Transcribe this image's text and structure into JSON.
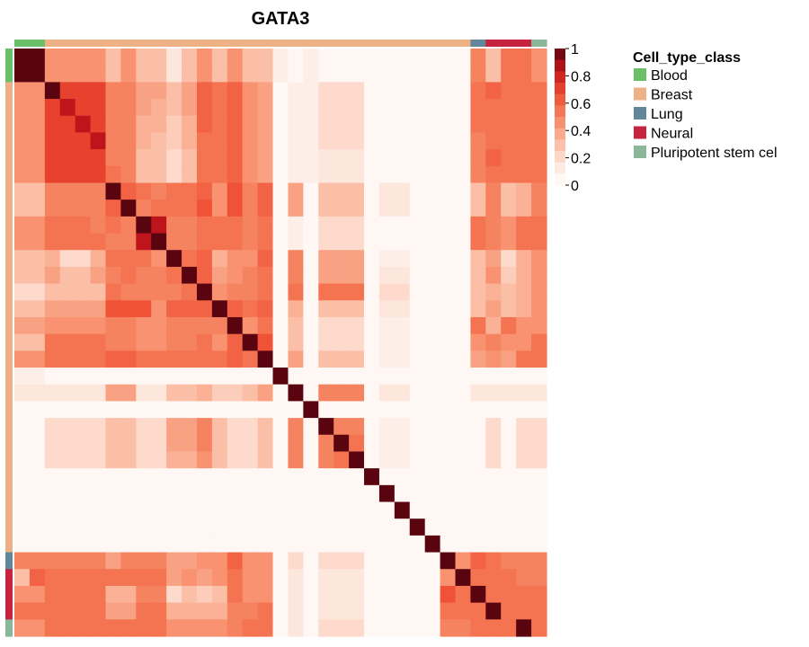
{
  "chart_data": {
    "type": "heatmap",
    "title": "GATA3",
    "colorbar": {
      "ticks": [
        "0",
        "0.2",
        "0.4",
        "0.6",
        "0.8",
        "1"
      ],
      "range": [
        0,
        1
      ],
      "colors": [
        "#ffffff",
        "#fde3d8",
        "#fbb69b",
        "#f6835f",
        "#ee4d32",
        "#c8171c",
        "#5a0410"
      ]
    },
    "legend": {
      "title": "Cell_type_class",
      "position": "right",
      "items": [
        {
          "label": "Blood",
          "color": "#6abf69"
        },
        {
          "label": "Breast",
          "color": "#eeb186"
        },
        {
          "label": "Lung",
          "color": "#60879a"
        },
        {
          "label": "Neural",
          "color": "#c6243e"
        },
        {
          "label": "Pluripotent stem cel",
          "color": "#88b897"
        }
      ]
    },
    "row_annotation": [
      "Blood",
      "Blood",
      "Breast",
      "Breast",
      "Breast",
      "Breast",
      "Breast",
      "Breast",
      "Breast",
      "Breast",
      "Breast",
      "Breast",
      "Breast",
      "Breast",
      "Breast",
      "Breast",
      "Breast",
      "Breast",
      "Breast",
      "Breast",
      "Breast",
      "Breast",
      "Breast",
      "Breast",
      "Breast",
      "Breast",
      "Breast",
      "Breast",
      "Breast",
      "Breast",
      "Lung",
      "Neural",
      "Neural",
      "Neural",
      "Pluripotent stem cel"
    ],
    "col_annotation": [
      "Blood",
      "Blood",
      "Breast",
      "Breast",
      "Breast",
      "Breast",
      "Breast",
      "Breast",
      "Breast",
      "Breast",
      "Breast",
      "Breast",
      "Breast",
      "Breast",
      "Breast",
      "Breast",
      "Breast",
      "Breast",
      "Breast",
      "Breast",
      "Breast",
      "Breast",
      "Breast",
      "Breast",
      "Breast",
      "Breast",
      "Breast",
      "Breast",
      "Breast",
      "Breast",
      "Lung",
      "Neural",
      "Neural",
      "Neural",
      "Pluripotent stem cel"
    ],
    "matrix": [
      [
        1,
        1,
        0.45,
        0.45,
        0.45,
        0.45,
        0.3,
        0.45,
        0.3,
        0.3,
        0.15,
        0.3,
        0.45,
        0.3,
        0.45,
        0.3,
        0.3,
        0.1,
        0.05,
        0.1,
        0.05,
        0.05,
        0.05,
        0.05,
        0.05,
        0.05,
        0.05,
        0.05,
        0.05,
        0.05,
        0.5,
        0.3,
        0.55,
        0.55,
        0.45
      ],
      [
        1,
        1,
        0.45,
        0.45,
        0.45,
        0.45,
        0.3,
        0.45,
        0.3,
        0.3,
        0.15,
        0.3,
        0.45,
        0.3,
        0.45,
        0.3,
        0.3,
        0.1,
        0.05,
        0.1,
        0.05,
        0.05,
        0.05,
        0.05,
        0.05,
        0.05,
        0.05,
        0.05,
        0.05,
        0.05,
        0.5,
        0.3,
        0.55,
        0.55,
        0.45
      ],
      [
        0.45,
        0.45,
        1,
        0.7,
        0.7,
        0.7,
        0.5,
        0.5,
        0.4,
        0.4,
        0.3,
        0.4,
        0.6,
        0.55,
        0.6,
        0.45,
        0.4,
        0.05,
        0.1,
        0.1,
        0.2,
        0.2,
        0.2,
        0.05,
        0.05,
        0.05,
        0.05,
        0.05,
        0.05,
        0.05,
        0.55,
        0.6,
        0.55,
        0.55,
        0.55
      ],
      [
        0.45,
        0.45,
        0.7,
        0.85,
        0.7,
        0.7,
        0.5,
        0.5,
        0.4,
        0.35,
        0.3,
        0.4,
        0.6,
        0.55,
        0.6,
        0.45,
        0.4,
        0.05,
        0.1,
        0.1,
        0.2,
        0.2,
        0.2,
        0.05,
        0.05,
        0.05,
        0.05,
        0.05,
        0.05,
        0.05,
        0.55,
        0.55,
        0.55,
        0.55,
        0.55
      ],
      [
        0.45,
        0.45,
        0.7,
        0.7,
        0.85,
        0.7,
        0.5,
        0.5,
        0.35,
        0.35,
        0.25,
        0.35,
        0.6,
        0.55,
        0.6,
        0.45,
        0.4,
        0.05,
        0.1,
        0.1,
        0.2,
        0.2,
        0.2,
        0.05,
        0.05,
        0.05,
        0.05,
        0.05,
        0.05,
        0.05,
        0.55,
        0.55,
        0.55,
        0.55,
        0.55
      ],
      [
        0.45,
        0.45,
        0.7,
        0.7,
        0.7,
        0.85,
        0.5,
        0.5,
        0.35,
        0.3,
        0.25,
        0.35,
        0.55,
        0.55,
        0.6,
        0.45,
        0.4,
        0.05,
        0.1,
        0.1,
        0.2,
        0.2,
        0.2,
        0.05,
        0.05,
        0.05,
        0.05,
        0.05,
        0.05,
        0.05,
        0.5,
        0.55,
        0.55,
        0.55,
        0.55
      ],
      [
        0.45,
        0.45,
        0.7,
        0.7,
        0.7,
        0.7,
        0.5,
        0.5,
        0.3,
        0.3,
        0.2,
        0.3,
        0.55,
        0.55,
        0.6,
        0.45,
        0.4,
        0.05,
        0.1,
        0.1,
        0.15,
        0.15,
        0.15,
        0.05,
        0.05,
        0.05,
        0.05,
        0.05,
        0.05,
        0.05,
        0.5,
        0.6,
        0.55,
        0.55,
        0.55
      ],
      [
        0.45,
        0.45,
        0.7,
        0.7,
        0.7,
        0.7,
        0.55,
        0.5,
        0.3,
        0.3,
        0.2,
        0.3,
        0.55,
        0.55,
        0.6,
        0.45,
        0.4,
        0.05,
        0.1,
        0.1,
        0.15,
        0.15,
        0.15,
        0.05,
        0.05,
        0.05,
        0.05,
        0.05,
        0.05,
        0.05,
        0.5,
        0.55,
        0.55,
        0.55,
        0.55
      ],
      [
        0.3,
        0.3,
        0.5,
        0.5,
        0.5,
        0.5,
        1,
        0.6,
        0.55,
        0.5,
        0.55,
        0.55,
        0.6,
        0.45,
        0.65,
        0.5,
        0.6,
        0.05,
        0.4,
        0.05,
        0.3,
        0.3,
        0.3,
        0.05,
        0.15,
        0.15,
        0.05,
        0.05,
        0.05,
        0.05,
        0.3,
        0.5,
        0.3,
        0.35,
        0.5
      ],
      [
        0.3,
        0.3,
        0.5,
        0.5,
        0.5,
        0.5,
        0.6,
        1,
        0.5,
        0.55,
        0.55,
        0.55,
        0.65,
        0.45,
        0.65,
        0.5,
        0.6,
        0.05,
        0.4,
        0.05,
        0.3,
        0.3,
        0.3,
        0.05,
        0.15,
        0.15,
        0.05,
        0.05,
        0.05,
        0.05,
        0.3,
        0.5,
        0.3,
        0.35,
        0.5
      ],
      [
        0.45,
        0.45,
        0.55,
        0.55,
        0.55,
        0.5,
        0.55,
        0.5,
        1,
        0.85,
        0.5,
        0.5,
        0.55,
        0.55,
        0.55,
        0.5,
        0.55,
        0.05,
        0.1,
        0.05,
        0.2,
        0.2,
        0.2,
        0.05,
        0.05,
        0.05,
        0.05,
        0.05,
        0.05,
        0.05,
        0.55,
        0.5,
        0.45,
        0.55,
        0.55
      ],
      [
        0.45,
        0.45,
        0.55,
        0.55,
        0.55,
        0.55,
        0.5,
        0.5,
        0.85,
        1,
        0.5,
        0.5,
        0.55,
        0.55,
        0.55,
        0.5,
        0.55,
        0.05,
        0.1,
        0.05,
        0.2,
        0.2,
        0.2,
        0.05,
        0.05,
        0.05,
        0.05,
        0.05,
        0.05,
        0.05,
        0.55,
        0.5,
        0.45,
        0.55,
        0.55
      ],
      [
        0.3,
        0.3,
        0.35,
        0.2,
        0.2,
        0.35,
        0.55,
        0.55,
        0.55,
        0.45,
        1,
        0.55,
        0.6,
        0.35,
        0.45,
        0.45,
        0.6,
        0.05,
        0.5,
        0.05,
        0.4,
        0.4,
        0.4,
        0.05,
        0.1,
        0.1,
        0.05,
        0.05,
        0.05,
        0.05,
        0.3,
        0.4,
        0.2,
        0.35,
        0.45
      ],
      [
        0.3,
        0.3,
        0.4,
        0.3,
        0.3,
        0.4,
        0.5,
        0.55,
        0.5,
        0.5,
        0.55,
        1,
        0.6,
        0.4,
        0.45,
        0.5,
        0.55,
        0.05,
        0.5,
        0.05,
        0.4,
        0.4,
        0.4,
        0.05,
        0.15,
        0.15,
        0.05,
        0.05,
        0.05,
        0.05,
        0.3,
        0.45,
        0.25,
        0.35,
        0.45
      ],
      [
        0.2,
        0.2,
        0.3,
        0.3,
        0.3,
        0.3,
        0.55,
        0.5,
        0.5,
        0.5,
        0.5,
        0.55,
        1,
        0.45,
        0.5,
        0.5,
        0.55,
        0.05,
        0.55,
        0.05,
        0.55,
        0.55,
        0.55,
        0.05,
        0.2,
        0.2,
        0.05,
        0.05,
        0.05,
        0.05,
        0.3,
        0.35,
        0.3,
        0.35,
        0.45
      ],
      [
        0.3,
        0.3,
        0.4,
        0.4,
        0.4,
        0.4,
        0.65,
        0.65,
        0.65,
        0.45,
        0.6,
        0.6,
        0.6,
        1,
        0.6,
        0.55,
        0.6,
        0.05,
        0.35,
        0.05,
        0.3,
        0.3,
        0.3,
        0.05,
        0.15,
        0.15,
        0.05,
        0.05,
        0.05,
        0.05,
        0.3,
        0.4,
        0.3,
        0.35,
        0.45
      ],
      [
        0.4,
        0.4,
        0.45,
        0.45,
        0.45,
        0.45,
        0.5,
        0.5,
        0.45,
        0.45,
        0.5,
        0.5,
        0.5,
        0.5,
        1,
        0.45,
        0.55,
        0.05,
        0.3,
        0.05,
        0.2,
        0.2,
        0.2,
        0.05,
        0.1,
        0.1,
        0.05,
        0.05,
        0.05,
        0.05,
        0.55,
        0.35,
        0.55,
        0.45,
        0.45
      ],
      [
        0.3,
        0.3,
        0.55,
        0.55,
        0.55,
        0.55,
        0.5,
        0.5,
        0.45,
        0.45,
        0.5,
        0.5,
        0.55,
        0.45,
        0.6,
        1,
        0.65,
        0.05,
        0.3,
        0.05,
        0.2,
        0.2,
        0.2,
        0.05,
        0.1,
        0.1,
        0.05,
        0.05,
        0.05,
        0.05,
        0.45,
        0.5,
        0.45,
        0.45,
        0.55
      ],
      [
        0.45,
        0.45,
        0.55,
        0.55,
        0.55,
        0.55,
        0.6,
        0.6,
        0.55,
        0.55,
        0.55,
        0.55,
        0.55,
        0.55,
        0.6,
        0.55,
        1,
        0.05,
        0.4,
        0.05,
        0.3,
        0.3,
        0.3,
        0.05,
        0.1,
        0.1,
        0.05,
        0.05,
        0.05,
        0.05,
        0.4,
        0.45,
        0.4,
        0.55,
        0.55
      ],
      [
        0.1,
        0.1,
        0.05,
        0.05,
        0.05,
        0.05,
        0.05,
        0.05,
        0.05,
        0.05,
        0.05,
        0.05,
        0.05,
        0.05,
        0.05,
        0.05,
        0.05,
        1,
        0.05,
        0.05,
        0.05,
        0.05,
        0.05,
        0.05,
        0.05,
        0.05,
        0.05,
        0.05,
        0.05,
        0.05,
        0.05,
        0.05,
        0.05,
        0.05,
        0.05
      ],
      [
        0.15,
        0.15,
        0.15,
        0.15,
        0.15,
        0.15,
        0.4,
        0.4,
        0.15,
        0.15,
        0.3,
        0.3,
        0.35,
        0.25,
        0.25,
        0.3,
        0.4,
        0.05,
        1,
        0.05,
        0.5,
        0.5,
        0.5,
        0.05,
        0.15,
        0.15,
        0.05,
        0.05,
        0.05,
        0.05,
        0.15,
        0.15,
        0.15,
        0.15,
        0.15
      ],
      [
        0.05,
        0.05,
        0.05,
        0.05,
        0.05,
        0.05,
        0.05,
        0.05,
        0.05,
        0.05,
        0.05,
        0.05,
        0.05,
        0.05,
        0.05,
        0.05,
        0.05,
        0.05,
        0.05,
        1,
        0.05,
        0.05,
        0.05,
        0.05,
        0.05,
        0.05,
        0.05,
        0.05,
        0.05,
        0.05,
        0.05,
        0.05,
        0.05,
        0.05,
        0.05
      ],
      [
        0.05,
        0.05,
        0.2,
        0.2,
        0.2,
        0.2,
        0.3,
        0.3,
        0.2,
        0.2,
        0.4,
        0.4,
        0.5,
        0.3,
        0.2,
        0.2,
        0.3,
        0.05,
        0.5,
        0.05,
        1,
        0.5,
        0.5,
        0.05,
        0.1,
        0.1,
        0.05,
        0.05,
        0.05,
        0.05,
        0.05,
        0.2,
        0.05,
        0.2,
        0.2
      ],
      [
        0.05,
        0.05,
        0.2,
        0.2,
        0.2,
        0.2,
        0.3,
        0.3,
        0.2,
        0.2,
        0.4,
        0.4,
        0.5,
        0.3,
        0.2,
        0.2,
        0.3,
        0.05,
        0.5,
        0.05,
        0.5,
        1,
        0.55,
        0.05,
        0.1,
        0.1,
        0.05,
        0.05,
        0.05,
        0.05,
        0.05,
        0.2,
        0.05,
        0.2,
        0.2
      ],
      [
        0.05,
        0.05,
        0.2,
        0.2,
        0.2,
        0.2,
        0.3,
        0.3,
        0.2,
        0.2,
        0.35,
        0.35,
        0.45,
        0.3,
        0.2,
        0.2,
        0.3,
        0.05,
        0.5,
        0.05,
        0.5,
        0.55,
        1,
        0.05,
        0.1,
        0.1,
        0.05,
        0.05,
        0.05,
        0.05,
        0.05,
        0.2,
        0.05,
        0.2,
        0.2
      ],
      [
        0.05,
        0.05,
        0.05,
        0.05,
        0.05,
        0.05,
        0.05,
        0.05,
        0.05,
        0.05,
        0.05,
        0.05,
        0.05,
        0.05,
        0.05,
        0.05,
        0.05,
        0.05,
        0.05,
        0.05,
        0.05,
        0.05,
        0.05,
        1,
        0.05,
        0.05,
        0.05,
        0.05,
        0.05,
        0.05,
        0.05,
        0.05,
        0.05,
        0.05,
        0.05
      ],
      [
        0.05,
        0.05,
        0.05,
        0.05,
        0.05,
        0.05,
        0.05,
        0.05,
        0.05,
        0.05,
        0.05,
        0.05,
        0.05,
        0.05,
        0.05,
        0.05,
        0.05,
        0.05,
        0.05,
        0.05,
        0.05,
        0.05,
        0.05,
        0.05,
        1,
        0.05,
        0.05,
        0.05,
        0.05,
        0.05,
        0.05,
        0.05,
        0.05,
        0.05,
        0.05
      ],
      [
        0.05,
        0.05,
        0.05,
        0.05,
        0.05,
        0.05,
        0.05,
        0.05,
        0.05,
        0.05,
        0.05,
        0.05,
        0.05,
        0.05,
        0.05,
        0.05,
        0.05,
        0.05,
        0.05,
        0.05,
        0.05,
        0.05,
        0.05,
        0.05,
        0.05,
        1,
        0.05,
        0.05,
        0.05,
        0.05,
        0.05,
        0.05,
        0.05,
        0.05,
        0.05
      ],
      [
        0.05,
        0.05,
        0.05,
        0.05,
        0.05,
        0.05,
        0.05,
        0.05,
        0.05,
        0.05,
        0.05,
        0.05,
        0.05,
        0.05,
        0.05,
        0.05,
        0.05,
        0.05,
        0.05,
        0.05,
        0.05,
        0.05,
        0.05,
        0.05,
        0.05,
        0.05,
        1,
        0.05,
        0.05,
        0.05,
        0.05,
        0.05,
        0.05,
        0.05,
        0.05
      ],
      [
        0.05,
        0.05,
        0.05,
        0.05,
        0.05,
        0.05,
        0.05,
        0.05,
        0.05,
        0.05,
        0.05,
        0.05,
        0.05,
        0.05,
        0.05,
        0.05,
        0.05,
        0.05,
        0.05,
        0.05,
        0.05,
        0.05,
        0.05,
        0.05,
        0.05,
        0.05,
        0.05,
        1,
        0.05,
        0.05,
        0.05,
        0.05,
        0.05,
        0.05,
        0.05
      ],
      [
        0.5,
        0.5,
        0.5,
        0.5,
        0.5,
        0.5,
        0.4,
        0.5,
        0.5,
        0.5,
        0.4,
        0.4,
        0.45,
        0.45,
        0.6,
        0.45,
        0.45,
        0.05,
        0.2,
        0.05,
        0.2,
        0.2,
        0.2,
        0.05,
        0.05,
        0.05,
        0.05,
        0.05,
        1,
        0.45,
        0.6,
        0.55,
        0.5,
        0.5,
        0.5
      ],
      [
        0.3,
        0.6,
        0.55,
        0.55,
        0.55,
        0.55,
        0.55,
        0.55,
        0.55,
        0.55,
        0.4,
        0.45,
        0.4,
        0.45,
        0.55,
        0.45,
        0.45,
        0.05,
        0.15,
        0.05,
        0.15,
        0.15,
        0.15,
        0.05,
        0.05,
        0.05,
        0.05,
        0.05,
        0.45,
        1,
        0.55,
        0.55,
        0.55,
        0.5,
        0.5
      ],
      [
        0.45,
        0.45,
        0.55,
        0.55,
        0.55,
        0.55,
        0.35,
        0.35,
        0.5,
        0.5,
        0.2,
        0.3,
        0.25,
        0.3,
        0.55,
        0.45,
        0.45,
        0.05,
        0.15,
        0.05,
        0.15,
        0.15,
        0.15,
        0.05,
        0.05,
        0.05,
        0.05,
        0.05,
        0.65,
        0.55,
        1,
        0.55,
        0.55,
        0.55,
        0.55
      ],
      [
        0.55,
        0.55,
        0.55,
        0.55,
        0.55,
        0.55,
        0.4,
        0.4,
        0.55,
        0.55,
        0.35,
        0.35,
        0.35,
        0.35,
        0.5,
        0.5,
        0.55,
        0.05,
        0.15,
        0.05,
        0.15,
        0.15,
        0.15,
        0.05,
        0.05,
        0.05,
        0.05,
        0.05,
        0.55,
        0.55,
        0.55,
        1,
        0.55,
        0.55,
        0.55
      ],
      [
        0.45,
        0.45,
        0.55,
        0.55,
        0.55,
        0.55,
        0.55,
        0.55,
        0.55,
        0.55,
        0.45,
        0.45,
        0.45,
        0.45,
        0.5,
        0.55,
        0.55,
        0.05,
        0.15,
        0.05,
        0.2,
        0.2,
        0.2,
        0.05,
        0.05,
        0.05,
        0.05,
        0.05,
        0.5,
        0.5,
        0.55,
        0.55,
        0.55,
        1,
        0.55
      ]
    ]
  }
}
